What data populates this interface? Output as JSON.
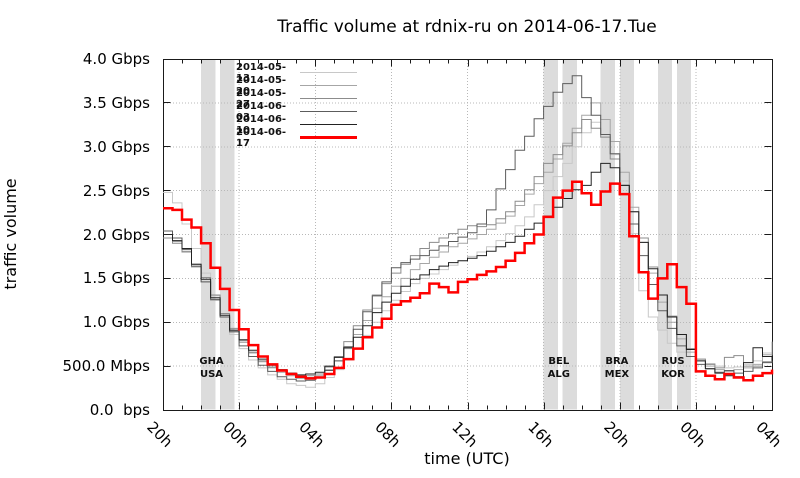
{
  "chart_data": {
    "type": "line",
    "title": "Traffic volume at rdnix-ru on 2014-06-17.Tue",
    "xlabel": "time (UTC)",
    "ylabel": "traffic volume",
    "grid": "dotted",
    "legend_position": "top-left-inside",
    "x_range_hours": [
      0,
      32
    ],
    "y_range_gbps": [
      0,
      4
    ],
    "x_start_label": "20h",
    "step_hours": 0.5,
    "x_ticks": [
      {
        "t": 0,
        "label": "20h"
      },
      {
        "t": 4,
        "label": "00h"
      },
      {
        "t": 8,
        "label": "04h"
      },
      {
        "t": 12,
        "label": "08h"
      },
      {
        "t": 16,
        "label": "12h"
      },
      {
        "t": 20,
        "label": "16h"
      },
      {
        "t": 24,
        "label": "20h"
      },
      {
        "t": 28,
        "label": "00h"
      },
      {
        "t": 32,
        "label": "04h"
      }
    ],
    "x_minor_tick_every_hours": 1,
    "y_ticks": [
      {
        "v": 0.0,
        "label": "0.0  bps"
      },
      {
        "v": 0.5,
        "label": "500.0 Mbps"
      },
      {
        "v": 1.0,
        "label": "1.0 Gbps"
      },
      {
        "v": 1.5,
        "label": "1.5 Gbps"
      },
      {
        "v": 2.0,
        "label": "2.0 Gbps"
      },
      {
        "v": 2.5,
        "label": "2.5 Gbps"
      },
      {
        "v": 3.0,
        "label": "3.0 Gbps"
      },
      {
        "v": 3.5,
        "label": "3.5 Gbps"
      },
      {
        "v": 4.0,
        "label": "4.0 Gbps"
      }
    ],
    "highlight_bands": [
      {
        "label_lines": [
          "GHA",
          "USA"
        ],
        "label_center_t": 2.55,
        "ranges_t": [
          [
            2,
            2.75
          ],
          [
            3,
            3.75
          ]
        ]
      },
      {
        "label_lines": [
          "BEL",
          "ALG"
        ],
        "label_center_t": 20.8,
        "ranges_t": [
          [
            20,
            20.75
          ],
          [
            21,
            21.75
          ]
        ]
      },
      {
        "label_lines": [
          "BRA",
          "MEX"
        ],
        "label_center_t": 23.85,
        "ranges_t": [
          [
            23,
            23.75
          ],
          [
            24,
            24.75
          ]
        ]
      },
      {
        "label_lines": [
          "RUS",
          "KOR"
        ],
        "label_center_t": 26.8,
        "ranges_t": [
          [
            26,
            26.75
          ],
          [
            27,
            27.75
          ]
        ]
      }
    ],
    "band_color": "#dcdcdc",
    "grid_color": "#b8b8b8",
    "axis_color": "#1a1a1a",
    "series": [
      {
        "name": "2014-05-13",
        "color": "#c8c8c8",
        "width": 1,
        "values_gbps": [
          2.48,
          2.36,
          2.12,
          1.84,
          1.56,
          1.3,
          1.06,
          0.86,
          0.7,
          0.57,
          0.48,
          0.4,
          0.35,
          0.3,
          0.28,
          0.26,
          0.3,
          0.37,
          0.46,
          0.57,
          0.7,
          0.85,
          1.0,
          1.13,
          1.25,
          1.35,
          1.44,
          1.5,
          1.55,
          1.6,
          1.65,
          1.7,
          1.75,
          1.8,
          1.86,
          1.93,
          2.01,
          2.1,
          2.2,
          2.34,
          2.5,
          2.66,
          2.81,
          3.0,
          3.16,
          3.28,
          3.11,
          2.91,
          2.61,
          2.01,
          1.36,
          1.06,
          0.91,
          0.76,
          0.66,
          0.61,
          0.58,
          0.53,
          0.5,
          0.48,
          0.49,
          0.52,
          0.56,
          0.65,
          0.75
        ]
      },
      {
        "name": "2014-05-20",
        "color": "#a6a6a6",
        "width": 1,
        "values_gbps": [
          2.0,
          1.92,
          1.81,
          1.63,
          1.46,
          1.25,
          1.06,
          0.9,
          0.77,
          0.65,
          0.55,
          0.48,
          0.43,
          0.39,
          0.36,
          0.37,
          0.39,
          0.46,
          0.56,
          0.7,
          0.86,
          1.02,
          1.16,
          1.29,
          1.41,
          1.5,
          1.6,
          1.67,
          1.74,
          1.8,
          1.86,
          1.9,
          1.95,
          2.0,
          2.06,
          2.13,
          2.21,
          2.33,
          2.46,
          2.58,
          2.71,
          2.86,
          3.04,
          3.21,
          3.36,
          3.5,
          3.31,
          3.06,
          2.71,
          2.31,
          1.91,
          1.56,
          1.23,
          1.0,
          0.81,
          0.66,
          0.56,
          0.5,
          0.46,
          0.44,
          0.46,
          0.48,
          0.52,
          0.63,
          0.78
        ]
      },
      {
        "name": "2014-05-27",
        "color": "#8c8c8c",
        "width": 1,
        "values_gbps": [
          1.96,
          1.9,
          1.8,
          1.66,
          1.51,
          1.31,
          1.1,
          0.93,
          0.79,
          0.66,
          0.56,
          0.49,
          0.45,
          0.41,
          0.38,
          0.39,
          0.41,
          0.49,
          0.61,
          0.78,
          0.96,
          1.14,
          1.31,
          1.44,
          1.56,
          1.66,
          1.76,
          1.84,
          1.91,
          1.96,
          2.01,
          2.06,
          2.1,
          2.09,
          2.11,
          2.18,
          2.26,
          2.38,
          2.51,
          2.66,
          2.81,
          2.91,
          3.01,
          3.16,
          3.31,
          3.21,
          3.11,
          2.86,
          2.56,
          2.26,
          1.96,
          1.63,
          1.31,
          1.07,
          0.86,
          0.7,
          0.58,
          0.52,
          0.48,
          0.6,
          0.62,
          0.5,
          0.5,
          0.55,
          0.6
        ]
      },
      {
        "name": "2014-06-03",
        "color": "#5c5c5c",
        "width": 1,
        "values_gbps": [
          2.04,
          1.96,
          1.83,
          1.64,
          1.46,
          1.26,
          1.06,
          0.89,
          0.73,
          0.61,
          0.51,
          0.44,
          0.38,
          0.35,
          0.33,
          0.34,
          0.37,
          0.45,
          0.56,
          0.72,
          0.92,
          1.12,
          1.3,
          1.46,
          1.62,
          1.68,
          1.72,
          1.76,
          1.82,
          1.87,
          1.92,
          1.97,
          2.02,
          2.12,
          2.28,
          2.52,
          2.74,
          2.96,
          3.12,
          3.32,
          3.46,
          3.62,
          3.72,
          3.81,
          3.56,
          3.36,
          3.14,
          2.92,
          2.56,
          2.12,
          1.76,
          1.43,
          1.13,
          0.93,
          0.73,
          0.61,
          0.52,
          0.47,
          0.43,
          0.45,
          0.42,
          0.44,
          0.48,
          0.54,
          0.62
        ]
      },
      {
        "name": "2014-06-10",
        "color": "#222222",
        "width": 1,
        "values_gbps": [
          2.0,
          1.93,
          1.84,
          1.66,
          1.49,
          1.28,
          1.08,
          0.91,
          0.8,
          0.68,
          0.58,
          0.51,
          0.46,
          0.42,
          0.4,
          0.41,
          0.43,
          0.5,
          0.6,
          0.71,
          0.83,
          0.96,
          1.11,
          1.23,
          1.33,
          1.41,
          1.49,
          1.54,
          1.6,
          1.64,
          1.68,
          1.7,
          1.73,
          1.76,
          1.81,
          1.86,
          1.91,
          1.98,
          2.06,
          2.13,
          2.21,
          2.31,
          2.41,
          2.51,
          2.56,
          2.71,
          2.81,
          2.76,
          2.56,
          2.26,
          1.91,
          1.61,
          1.31,
          1.06,
          0.86,
          0.69,
          0.56,
          0.47,
          0.42,
          0.39,
          0.38,
          0.54,
          0.71,
          0.61,
          0.56
        ]
      },
      {
        "name": "2014-06-17",
        "color": "#ff0000",
        "width": 2.5,
        "values_gbps": [
          2.3,
          2.28,
          2.17,
          2.08,
          1.9,
          1.62,
          1.38,
          1.14,
          0.92,
          0.74,
          0.61,
          0.52,
          0.45,
          0.41,
          0.38,
          0.36,
          0.37,
          0.41,
          0.48,
          0.58,
          0.7,
          0.83,
          0.94,
          1.04,
          1.2,
          1.24,
          1.28,
          1.33,
          1.44,
          1.4,
          1.34,
          1.46,
          1.49,
          1.54,
          1.58,
          1.63,
          1.7,
          1.79,
          1.9,
          2.0,
          2.2,
          2.42,
          2.5,
          2.6,
          2.47,
          2.34,
          2.49,
          2.58,
          2.46,
          1.98,
          1.57,
          1.27,
          1.5,
          1.66,
          1.4,
          1.21,
          0.44,
          0.39,
          0.35,
          0.41,
          0.37,
          0.34,
          0.39,
          0.42,
          0.46
        ]
      }
    ]
  }
}
